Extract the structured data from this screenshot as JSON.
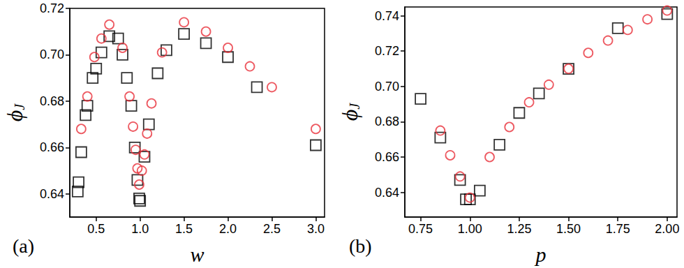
{
  "chart_data": [
    {
      "type": "scatter",
      "annotation": "(a)",
      "xlabel": "w",
      "ylabel": "ϕJ",
      "xlim": [
        0.2,
        3.1
      ],
      "xticks": [
        {
          "value": 0.5,
          "label": "0.5"
        },
        {
          "value": 1.0,
          "label": "1.0"
        },
        {
          "value": 1.5,
          "label": "1.5"
        },
        {
          "value": 2.0,
          "label": "2.0"
        },
        {
          "value": 2.5,
          "label": "2.5"
        },
        {
          "value": 3.0,
          "label": "3.0"
        }
      ],
      "ylim": [
        0.63,
        0.72
      ],
      "yticks": [
        0.64,
        0.66,
        0.68,
        {
          "value": 0.7,
          "label": "0.70"
        },
        0.72
      ],
      "grid": false,
      "series": [
        {
          "color": "#000000",
          "marker": "square",
          "x": [
            0.29,
            0.3,
            0.33,
            0.38,
            0.4,
            0.46,
            0.5,
            0.56,
            0.65,
            0.75,
            0.8,
            0.85,
            0.9,
            0.94,
            0.97,
            0.99,
            1.0,
            1.05,
            1.1,
            1.2,
            1.3,
            1.5,
            1.75,
            2.0,
            2.33,
            3.0
          ],
          "values": [
            0.641,
            0.645,
            0.658,
            0.674,
            0.678,
            0.69,
            0.694,
            0.701,
            0.708,
            0.707,
            0.7,
            0.69,
            0.678,
            0.66,
            0.646,
            0.638,
            0.637,
            0.656,
            0.67,
            0.692,
            0.702,
            0.709,
            0.705,
            0.699,
            0.686,
            0.661
          ]
        },
        {
          "color": "#e8303a",
          "marker": "circle",
          "x": [
            0.33,
            0.4,
            0.48,
            0.56,
            0.65,
            0.8,
            0.88,
            0.92,
            0.95,
            0.97,
            0.99,
            1.02,
            1.05,
            1.08,
            1.13,
            1.25,
            1.5,
            1.75,
            2.0,
            2.25,
            2.5,
            3.0
          ],
          "values": [
            0.668,
            0.682,
            0.699,
            0.707,
            0.713,
            0.703,
            0.682,
            0.669,
            0.659,
            0.651,
            0.644,
            0.65,
            0.657,
            0.666,
            0.679,
            0.701,
            0.714,
            0.71,
            0.703,
            0.695,
            0.686,
            0.668
          ]
        }
      ]
    },
    {
      "type": "scatter",
      "annotation": "(b)",
      "xlabel": "p",
      "ylabel": "ϕJ",
      "xlim": [
        0.67,
        2.05
      ],
      "xticks": [
        0.75,
        {
          "value": 1.0,
          "label": "1.00"
        },
        1.25,
        {
          "value": 1.5,
          "label": "1.50"
        },
        1.75,
        {
          "value": 2.0,
          "label": "2.00"
        }
      ],
      "ylim": [
        0.626,
        0.745
      ],
      "yticks": [
        0.64,
        0.66,
        0.68,
        {
          "value": 0.7,
          "label": "0.70"
        },
        0.72,
        0.74
      ],
      "grid": false,
      "series": [
        {
          "color": "#000000",
          "marker": "square",
          "x": [
            0.75,
            0.85,
            0.95,
            0.98,
            1.0,
            1.05,
            1.15,
            1.25,
            1.35,
            1.5,
            1.75,
            2.0
          ],
          "values": [
            0.693,
            0.671,
            0.647,
            0.636,
            0.636,
            0.641,
            0.667,
            0.685,
            0.696,
            0.71,
            0.733,
            0.741
          ]
        },
        {
          "color": "#e8303a",
          "marker": "circle",
          "x": [
            0.85,
            0.9,
            0.95,
            1.0,
            1.1,
            1.2,
            1.3,
            1.4,
            1.5,
            1.6,
            1.7,
            1.8,
            1.9,
            2.0
          ],
          "values": [
            0.675,
            0.661,
            0.649,
            0.637,
            0.66,
            0.677,
            0.691,
            0.701,
            0.71,
            0.719,
            0.726,
            0.732,
            0.738,
            0.743
          ]
        }
      ]
    }
  ]
}
